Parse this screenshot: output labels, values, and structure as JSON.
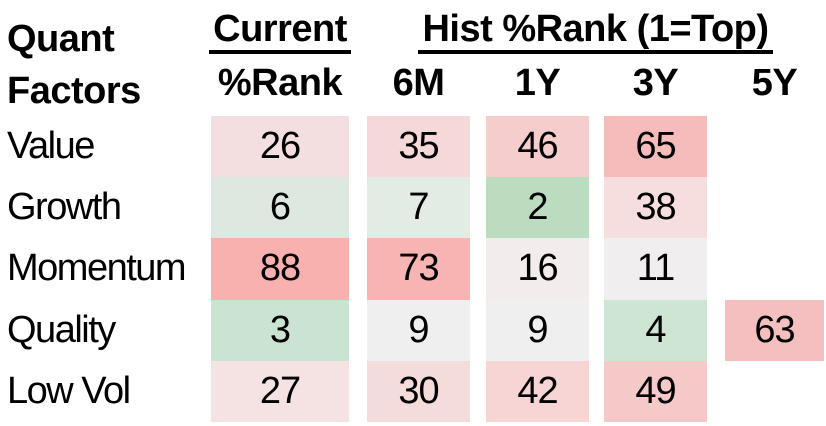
{
  "title": {
    "line1": "Quant",
    "line2": "Factors"
  },
  "header": {
    "current_group_label": "Current",
    "current_sub_label": "%Rank",
    "hist_group_label": "Hist %Rank (1=Top)",
    "period_labels": {
      "m6": "6M",
      "y1": "1Y",
      "y3": "3Y",
      "y5": "5Y"
    }
  },
  "colors": {
    "strong_red": "#F9B1AF",
    "strong_green": "#BCDCC0",
    "neutral": "#F0EEEF",
    "text": "#000000",
    "background": "#FFFFFF"
  },
  "table": {
    "rows": [
      {
        "label": "Value",
        "cells": [
          {
            "value": "26",
            "bg": "#F3DFE0"
          },
          {
            "value": "35",
            "bg": "#F5D8D8"
          },
          {
            "value": "46",
            "bg": "#F6CDCD"
          },
          {
            "value": "65",
            "bg": "#F5BCBB"
          },
          {
            "value": null,
            "bg": null
          }
        ]
      },
      {
        "label": "Growth",
        "cells": [
          {
            "value": "6",
            "bg": "#DDE8E0"
          },
          {
            "value": "7",
            "bg": "#E3ECE4"
          },
          {
            "value": "2",
            "bg": "#BCDCC0"
          },
          {
            "value": "38",
            "bg": "#F6DEDE"
          },
          {
            "value": null,
            "bg": null
          }
        ]
      },
      {
        "label": "Momentum",
        "cells": [
          {
            "value": "88",
            "bg": "#F9B1AF"
          },
          {
            "value": "73",
            "bg": "#F7B4B2"
          },
          {
            "value": "16",
            "bg": "#F2ECEC"
          },
          {
            "value": "11",
            "bg": "#F0EEEF"
          },
          {
            "value": null,
            "bg": null
          }
        ]
      },
      {
        "label": "Quality",
        "cells": [
          {
            "value": "3",
            "bg": "#CBE3D1"
          },
          {
            "value": "9",
            "bg": "#F0EFEF"
          },
          {
            "value": "9",
            "bg": "#F0EFEF"
          },
          {
            "value": "4",
            "bg": "#CEE5D4"
          },
          {
            "value": "63",
            "bg": "#F5BFBF"
          }
        ]
      },
      {
        "label": "Low Vol",
        "cells": [
          {
            "value": "27",
            "bg": "#F5E2E2"
          },
          {
            "value": "30",
            "bg": "#F4DCDB"
          },
          {
            "value": "42",
            "bg": "#F6D5D4"
          },
          {
            "value": "49",
            "bg": "#F4C9C8"
          },
          {
            "value": null,
            "bg": null
          }
        ]
      }
    ]
  },
  "chart_data": {
    "type": "heatmap",
    "title": "Quant Factors — Current and Historical %Rank (1=Top)",
    "row_labels": [
      "Value",
      "Growth",
      "Momentum",
      "Quality",
      "Low Vol"
    ],
    "col_labels": [
      "Current %Rank",
      "6M",
      "1Y",
      "3Y",
      "5Y"
    ],
    "values": [
      [
        26,
        35,
        46,
        65,
        null
      ],
      [
        6,
        7,
        2,
        38,
        null
      ],
      [
        88,
        73,
        16,
        11,
        null
      ],
      [
        3,
        9,
        9,
        4,
        63
      ],
      [
        27,
        30,
        42,
        49,
        null
      ]
    ],
    "color_scale": "low ranks green, ~10-15 near-white neutral, high ranks red",
    "legend_position": "none",
    "grid": false
  }
}
